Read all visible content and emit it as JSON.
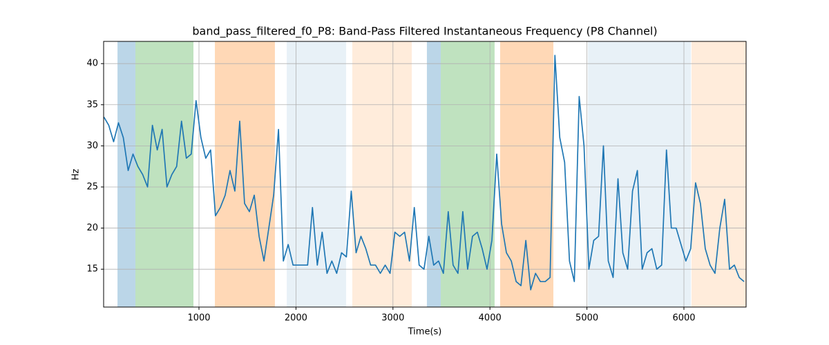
{
  "chart_data": {
    "type": "line",
    "title": "band_pass_filtered_f0_P8: Band-Pass Filtered Instantaneous Frequency (P8 Channel)",
    "xlabel": "Time(s)",
    "ylabel": "Hz",
    "xlim": [
      17,
      6641
    ],
    "ylim": [
      10.4,
      42.7
    ],
    "xticks": [
      1000,
      2000,
      3000,
      4000,
      5000,
      6000
    ],
    "yticks": [
      15,
      20,
      25,
      30,
      35,
      40
    ],
    "grid": true,
    "spans": [
      {
        "start": 160,
        "end": 345,
        "color": "rgba(31,119,180,0.3)"
      },
      {
        "start": 345,
        "end": 943,
        "color": "rgba(44,160,44,0.3)"
      },
      {
        "start": 1164,
        "end": 1783,
        "color": "rgba(255,127,14,0.3)"
      },
      {
        "start": 1905,
        "end": 2517,
        "color": "rgba(31,119,180,0.1)"
      },
      {
        "start": 2581,
        "end": 3194,
        "color": "rgba(255,127,14,0.15)"
      },
      {
        "start": 3350,
        "end": 3493,
        "color": "rgba(31,119,180,0.3)"
      },
      {
        "start": 3493,
        "end": 4048,
        "color": "rgba(44,160,44,0.3)"
      },
      {
        "start": 4105,
        "end": 4654,
        "color": "rgba(255,127,14,0.3)"
      },
      {
        "start": 5010,
        "end": 6071,
        "color": "rgba(31,119,180,0.1)"
      },
      {
        "start": 6078,
        "end": 6641,
        "color": "rgba(255,127,14,0.15)"
      }
    ],
    "series": [
      {
        "color": "#1f77b4",
        "x": [
          20,
          70,
          120,
          170,
          220,
          270,
          320,
          370,
          420,
          470,
          520,
          570,
          620,
          670,
          720,
          770,
          820,
          870,
          920,
          970,
          1020,
          1070,
          1120,
          1170,
          1220,
          1270,
          1320,
          1370,
          1420,
          1470,
          1520,
          1570,
          1620,
          1670,
          1720,
          1770,
          1820,
          1870,
          1920,
          1970,
          2020,
          2070,
          2120,
          2170,
          2220,
          2270,
          2320,
          2370,
          2420,
          2470,
          2520,
          2570,
          2620,
          2670,
          2720,
          2770,
          2820,
          2870,
          2920,
          2970,
          3020,
          3070,
          3120,
          3170,
          3220,
          3270,
          3320,
          3370,
          3420,
          3470,
          3520,
          3570,
          3620,
          3670,
          3720,
          3770,
          3820,
          3870,
          3920,
          3970,
          4020,
          4070,
          4120,
          4170,
          4220,
          4270,
          4320,
          4370,
          4420,
          4470,
          4520,
          4570,
          4620,
          4670,
          4720,
          4770,
          4820,
          4870,
          4920,
          4970,
          5020,
          5070,
          5120,
          5170,
          5220,
          5270,
          5320,
          5370,
          5420,
          5470,
          5520,
          5570,
          5620,
          5670,
          5720,
          5770,
          5820,
          5870,
          5920,
          5970,
          6020,
          6070,
          6120,
          6170,
          6220,
          6270,
          6320,
          6370,
          6420,
          6470,
          6520,
          6570,
          6620
        ],
        "values": [
          33.5,
          32.5,
          30.5,
          32.8,
          31,
          27,
          29,
          27.5,
          26.5,
          25,
          32.5,
          29.5,
          32,
          25,
          26.5,
          27.5,
          33,
          28.5,
          29,
          35.5,
          31,
          28.5,
          29.5,
          21.5,
          22.5,
          24,
          27,
          24.5,
          33,
          23,
          22,
          24,
          19,
          16,
          20,
          24,
          32,
          16,
          18,
          15.5,
          15.5,
          15.5,
          15.5,
          22.5,
          15.5,
          19.5,
          14.5,
          16,
          14.5,
          17,
          16.5,
          24.5,
          17,
          19,
          17.5,
          15.5,
          15.5,
          14.5,
          15.5,
          14.5,
          19.5,
          19,
          19.5,
          16,
          22.5,
          15.5,
          15,
          19,
          15.5,
          16,
          14.5,
          22,
          15.5,
          14.5,
          22,
          15,
          19,
          19.5,
          17.5,
          15,
          18.5,
          29,
          20.5,
          17,
          16,
          13.5,
          13,
          18.5,
          12.5,
          14.5,
          13.5,
          13.5,
          14,
          41,
          31,
          28,
          16,
          13.5,
          36,
          30,
          15,
          18.5,
          19,
          30,
          16,
          14,
          26,
          17,
          15,
          24.5,
          27,
          15,
          17,
          17.5,
          15,
          15.5,
          29.5,
          20,
          20,
          18,
          16,
          17.5,
          25.5,
          23,
          17.5,
          15.5,
          14.5,
          20,
          23.5,
          15,
          15.5,
          14,
          13.5
        ]
      }
    ]
  }
}
